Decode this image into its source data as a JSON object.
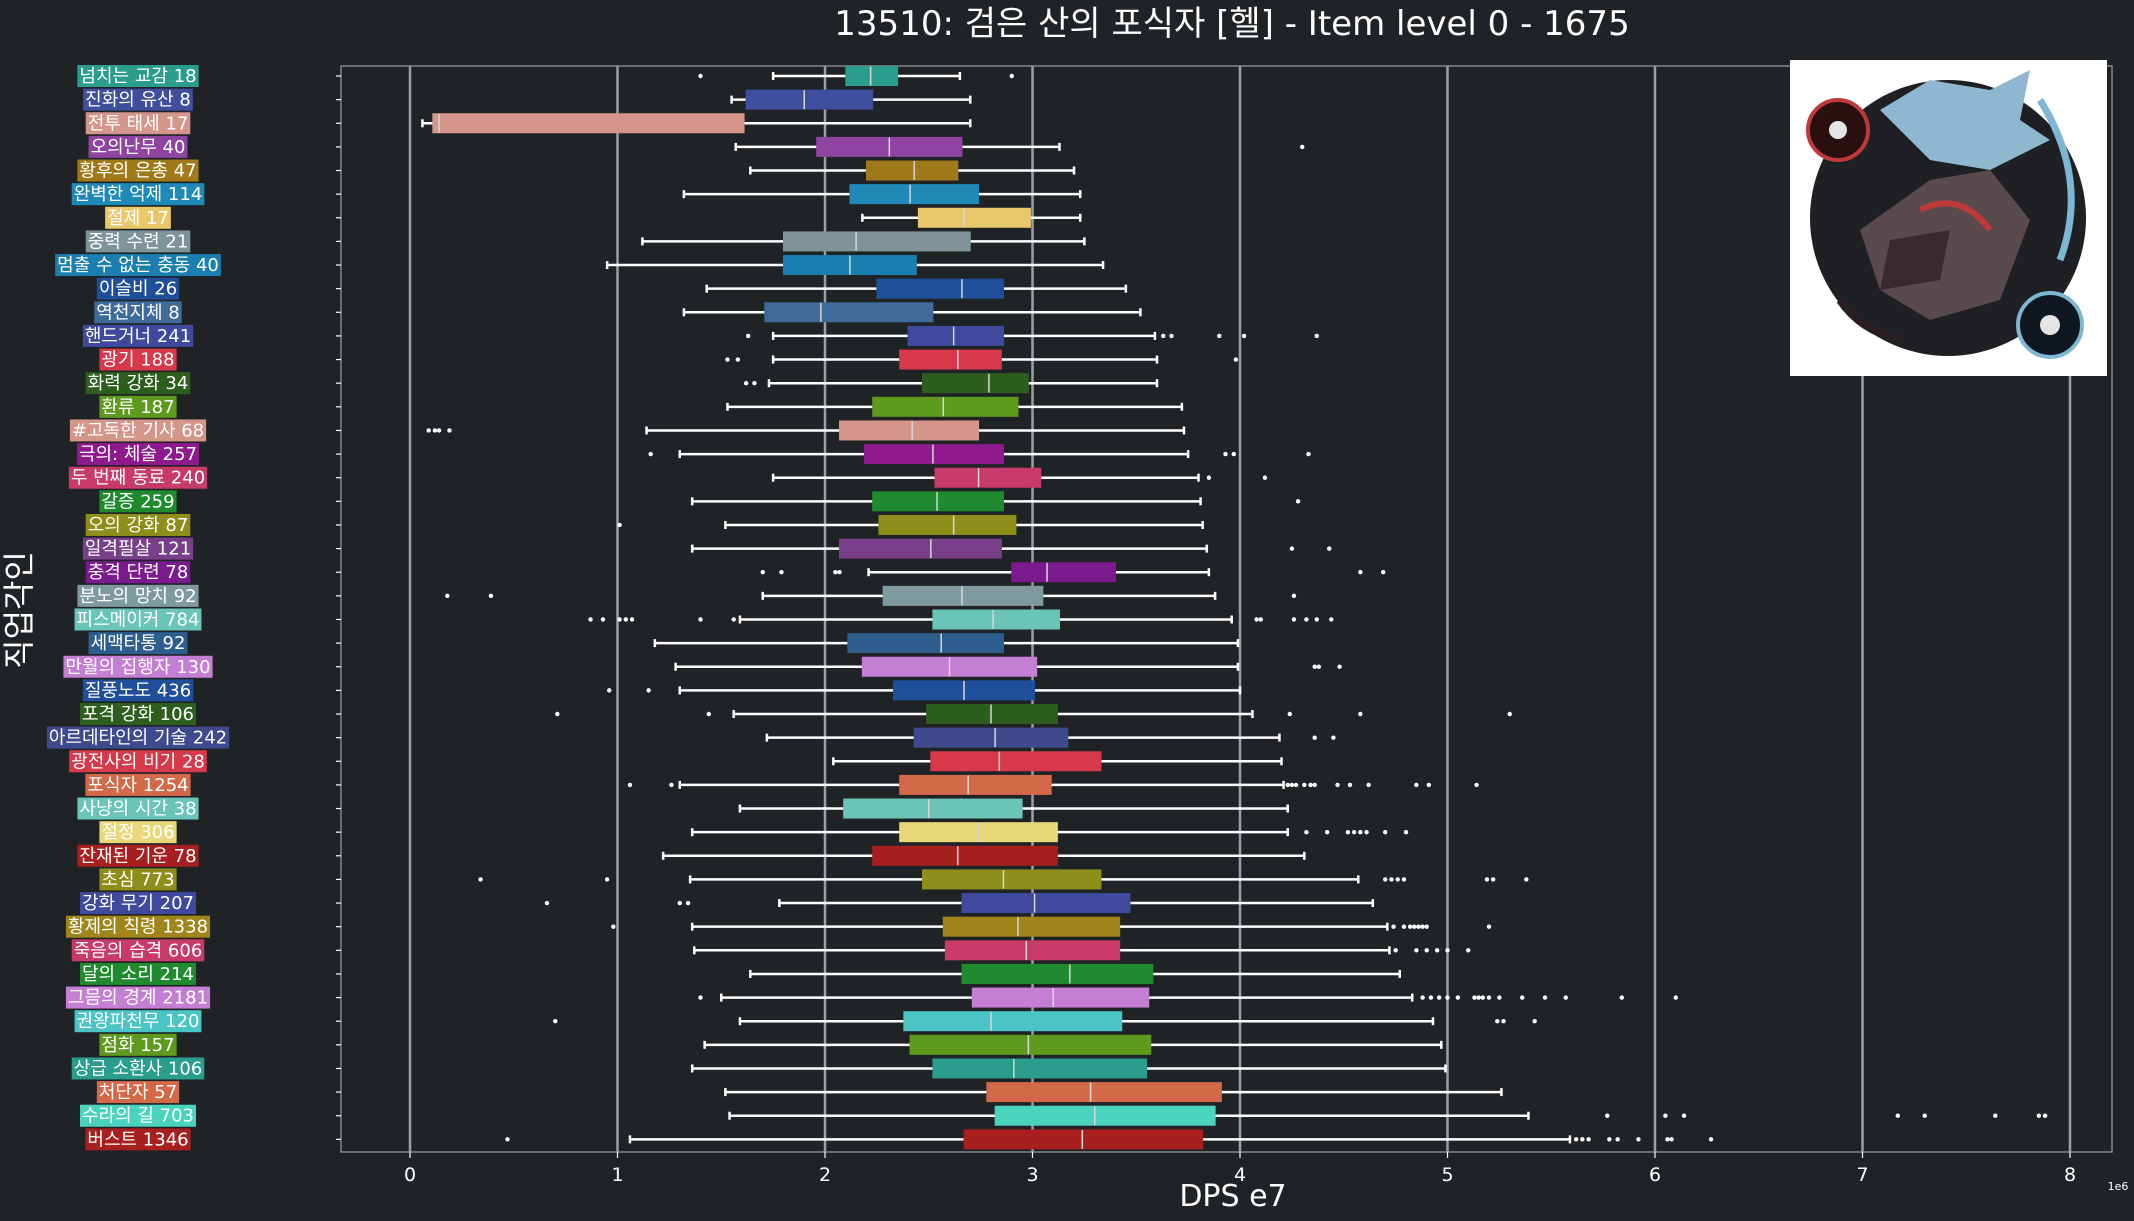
{
  "chart_data": {
    "type": "box",
    "orientation": "horizontal",
    "title": "13510: 검은 산의 포식자 [헬] - Item level 0 - 1675",
    "xlabel": "DPS e7",
    "ylabel": "직업각인",
    "x_offset_label": "1e6",
    "xlim": [
      -0.3,
      8.2
    ],
    "xticks": [
      0,
      1,
      2,
      3,
      4,
      5,
      6,
      7,
      8
    ],
    "grid": "vertical",
    "has_image": true,
    "image_description": "portrait",
    "categories": [
      {
        "label": "넘치는 교감 18",
        "color": "#2a9d8f",
        "whisker_low": 1.75,
        "q1": 2.1,
        "median": 2.22,
        "q3": 2.35,
        "whisker_high": 2.65,
        "outliers": [
          1.4,
          2.9
        ]
      },
      {
        "label": "진화의 유산 8",
        "color": "#3f4f9e",
        "whisker_low": 1.55,
        "q1": 1.62,
        "median": 1.9,
        "q3": 2.23,
        "whisker_high": 2.7,
        "outliers": []
      },
      {
        "label": "전투 태세 17",
        "color": "#d4968a",
        "whisker_low": 0.06,
        "q1": 0.11,
        "median": 0.14,
        "q3": 1.61,
        "whisker_high": 2.7,
        "outliers": []
      },
      {
        "label": "오의난무 40",
        "color": "#8e44a0",
        "whisker_low": 1.57,
        "q1": 1.96,
        "median": 2.31,
        "q3": 2.66,
        "whisker_high": 3.13,
        "outliers": [
          4.3
        ]
      },
      {
        "label": "황후의 은총 47",
        "color": "#a07a1a",
        "whisker_low": 1.64,
        "q1": 2.2,
        "median": 2.43,
        "q3": 2.64,
        "whisker_high": 3.2,
        "outliers": []
      },
      {
        "label": "완벽한 억제 114",
        "color": "#1f8ab8",
        "whisker_low": 1.32,
        "q1": 2.12,
        "median": 2.41,
        "q3": 2.74,
        "whisker_high": 3.23,
        "outliers": []
      },
      {
        "label": "절제 17",
        "color": "#e8c86a",
        "whisker_low": 2.18,
        "q1": 2.45,
        "median": 2.67,
        "q3": 2.99,
        "whisker_high": 3.23,
        "outliers": []
      },
      {
        "label": "중력 수련 21",
        "color": "#7f9498",
        "whisker_low": 1.12,
        "q1": 1.8,
        "median": 2.15,
        "q3": 2.7,
        "whisker_high": 3.25,
        "outliers": []
      },
      {
        "label": "멈출 수 없는 충동 40",
        "color": "#1a7fb0",
        "whisker_low": 0.95,
        "q1": 1.8,
        "median": 2.12,
        "q3": 2.44,
        "whisker_high": 3.34,
        "outliers": []
      },
      {
        "label": "이슬비 26",
        "color": "#1f4f9a",
        "whisker_low": 1.43,
        "q1": 2.25,
        "median": 2.66,
        "q3": 2.86,
        "whisker_high": 3.45,
        "outliers": []
      },
      {
        "label": "역천지체 8",
        "color": "#3f6b9a",
        "whisker_low": 1.32,
        "q1": 1.71,
        "median": 1.98,
        "q3": 2.52,
        "whisker_high": 3.52,
        "outliers": []
      },
      {
        "label": "핸드거너 241",
        "color": "#3f4a9e",
        "whisker_low": 1.75,
        "q1": 2.4,
        "median": 2.62,
        "q3": 2.86,
        "whisker_high": 3.59,
        "outliers": [
          1.63,
          3.63,
          3.67,
          3.9,
          4.02,
          4.37
        ]
      },
      {
        "label": "광기 188",
        "color": "#d6394a",
        "whisker_low": 1.75,
        "q1": 2.36,
        "median": 2.64,
        "q3": 2.85,
        "whisker_high": 3.6,
        "outliers": [
          1.53,
          1.58,
          3.98
        ]
      },
      {
        "label": "화력 강화 34",
        "color": "#2e5e1e",
        "whisker_low": 1.73,
        "q1": 2.47,
        "median": 2.79,
        "q3": 2.98,
        "whisker_high": 3.6,
        "outliers": [
          1.62,
          1.66
        ]
      },
      {
        "label": "환류 187",
        "color": "#5e9a1e",
        "whisker_low": 1.53,
        "q1": 2.23,
        "median": 2.57,
        "q3": 2.93,
        "whisker_high": 3.72,
        "outliers": []
      },
      {
        "label": "#고독한 기사 68",
        "color": "#d4968a",
        "whisker_low": 1.14,
        "q1": 2.07,
        "median": 2.42,
        "q3": 2.74,
        "whisker_high": 3.73,
        "outliers": [
          0.09,
          0.12,
          0.14,
          0.19
        ]
      },
      {
        "label": "극의: 체술 257",
        "color": "#8e1a8e",
        "whisker_low": 1.3,
        "q1": 2.19,
        "median": 2.52,
        "q3": 2.86,
        "whisker_high": 3.75,
        "outliers": [
          1.16,
          3.93,
          3.97,
          4.33
        ]
      },
      {
        "label": "두 번째 동료 240",
        "color": "#c83a6a",
        "whisker_low": 1.75,
        "q1": 2.53,
        "median": 2.74,
        "q3": 3.04,
        "whisker_high": 3.8,
        "outliers": [
          3.85,
          4.12
        ]
      },
      {
        "label": "갈증 259",
        "color": "#1f8a2e",
        "whisker_low": 1.36,
        "q1": 2.23,
        "median": 2.54,
        "q3": 2.86,
        "whisker_high": 3.81,
        "outliers": [
          4.28
        ]
      },
      {
        "label": "오의 강화 87",
        "color": "#8e8e1a",
        "whisker_low": 1.52,
        "q1": 2.26,
        "median": 2.62,
        "q3": 2.92,
        "whisker_high": 3.82,
        "outliers": [
          1.01
        ]
      },
      {
        "label": "일격필살 121",
        "color": "#7a3f8a",
        "whisker_low": 1.36,
        "q1": 2.07,
        "median": 2.51,
        "q3": 2.85,
        "whisker_high": 3.84,
        "outliers": [
          4.25,
          4.43
        ]
      },
      {
        "label": "충격 단련 78",
        "color": "#7a1a8e",
        "whisker_low": 2.21,
        "q1": 2.9,
        "median": 3.07,
        "q3": 3.4,
        "whisker_high": 3.85,
        "outliers": [
          1.7,
          1.79,
          2.05,
          2.07,
          4.58,
          4.69
        ]
      },
      {
        "label": "분노의 망치 92",
        "color": "#7f9a9e",
        "whisker_low": 1.7,
        "q1": 2.28,
        "median": 2.66,
        "q3": 3.05,
        "whisker_high": 3.88,
        "outliers": [
          0.18,
          0.39,
          4.26
        ]
      },
      {
        "label": "피스메이커 784",
        "color": "#6ac4b8",
        "whisker_low": 1.59,
        "q1": 2.52,
        "median": 2.81,
        "q3": 3.13,
        "whisker_high": 3.96,
        "outliers": [
          0.87,
          0.93,
          1.01,
          1.04,
          1.07,
          1.4,
          1.56,
          4.08,
          4.1,
          4.26,
          4.32,
          4.37,
          4.44
        ]
      },
      {
        "label": "세맥타통 92",
        "color": "#2e5e8e",
        "whisker_low": 1.18,
        "q1": 2.11,
        "median": 2.56,
        "q3": 2.86,
        "whisker_high": 3.99,
        "outliers": []
      },
      {
        "label": "만월의 집행자 130",
        "color": "#c47fd4",
        "whisker_low": 1.28,
        "q1": 2.18,
        "median": 2.6,
        "q3": 3.02,
        "whisker_high": 3.99,
        "outliers": [
          4.36,
          4.38,
          4.48
        ]
      },
      {
        "label": "질풍노도 436",
        "color": "#1f4f9a",
        "whisker_low": 1.3,
        "q1": 2.33,
        "median": 2.67,
        "q3": 3.01,
        "whisker_high": 4.0,
        "outliers": [
          0.96,
          1.15
        ]
      },
      {
        "label": "포격 강화 106",
        "color": "#2e5e1e",
        "whisker_low": 1.56,
        "q1": 2.49,
        "median": 2.8,
        "q3": 3.12,
        "whisker_high": 4.06,
        "outliers": [
          0.71,
          1.44,
          4.24,
          4.58,
          5.3
        ]
      },
      {
        "label": "아르데타인의 기술 242",
        "color": "#3f4a8e",
        "whisker_low": 1.72,
        "q1": 2.43,
        "median": 2.82,
        "q3": 3.17,
        "whisker_high": 4.19,
        "outliers": [
          4.36,
          4.45
        ]
      },
      {
        "label": "광전사의 비기 28",
        "color": "#d6394a",
        "whisker_low": 2.04,
        "q1": 2.51,
        "median": 2.84,
        "q3": 3.33,
        "whisker_high": 4.2,
        "outliers": []
      },
      {
        "label": "포식자 1254",
        "color": "#d4694a",
        "whisker_low": 1.3,
        "q1": 2.36,
        "median": 2.69,
        "q3": 3.09,
        "whisker_high": 4.21,
        "outliers": [
          1.06,
          1.26,
          4.23,
          4.25,
          4.27,
          4.31,
          4.34,
          4.36,
          4.47,
          4.53,
          4.62,
          4.85,
          4.91,
          5.14
        ]
      },
      {
        "label": "사냥의 시간 38",
        "color": "#6ac4b8",
        "whisker_low": 1.59,
        "q1": 2.09,
        "median": 2.5,
        "q3": 2.95,
        "whisker_high": 4.23,
        "outliers": []
      },
      {
        "label": "절정 306",
        "color": "#e8d87a",
        "whisker_low": 1.36,
        "q1": 2.36,
        "median": 2.74,
        "q3": 3.12,
        "whisker_high": 4.23,
        "outliers": [
          4.32,
          4.42,
          4.52,
          4.55,
          4.58,
          4.61,
          4.7,
          4.8
        ]
      },
      {
        "label": "잔재된 기운 78",
        "color": "#a81f1f",
        "whisker_low": 1.22,
        "q1": 2.23,
        "median": 2.64,
        "q3": 3.12,
        "whisker_high": 4.31,
        "outliers": []
      },
      {
        "label": "초심 773",
        "color": "#8e8e1a",
        "whisker_low": 1.35,
        "q1": 2.47,
        "median": 2.86,
        "q3": 3.33,
        "whisker_high": 4.57,
        "outliers": [
          0.34,
          0.95,
          4.7,
          4.73,
          4.76,
          4.79,
          5.19,
          5.22,
          5.38
        ]
      },
      {
        "label": "강화 무기 207",
        "color": "#3f4a9e",
        "whisker_low": 1.78,
        "q1": 2.66,
        "median": 3.01,
        "q3": 3.47,
        "whisker_high": 4.64,
        "outliers": [
          0.66,
          1.3,
          1.34
        ]
      },
      {
        "label": "황제의 칙령 1338",
        "color": "#a0861a",
        "whisker_low": 1.36,
        "q1": 2.57,
        "median": 2.93,
        "q3": 3.42,
        "whisker_high": 4.71,
        "outliers": [
          0.98,
          4.74,
          4.79,
          4.82,
          4.84,
          4.86,
          4.88,
          4.9,
          5.2
        ]
      },
      {
        "label": "죽음의 습격 606",
        "color": "#c83a6a",
        "whisker_low": 1.37,
        "q1": 2.58,
        "median": 2.97,
        "q3": 3.42,
        "whisker_high": 4.72,
        "outliers": [
          4.75,
          4.85,
          4.9,
          4.95,
          5.0,
          5.1
        ]
      },
      {
        "label": "달의 소리 214",
        "color": "#1f8a2e",
        "whisker_low": 1.64,
        "q1": 2.66,
        "median": 3.18,
        "q3": 3.58,
        "whisker_high": 4.77,
        "outliers": []
      },
      {
        "label": "그믐의 경계 2181",
        "color": "#c47fd4",
        "whisker_low": 1.5,
        "q1": 2.71,
        "median": 3.1,
        "q3": 3.56,
        "whisker_high": 4.83,
        "outliers": [
          1.4,
          4.88,
          4.92,
          4.96,
          5.0,
          5.05,
          5.13,
          5.15,
          5.17,
          5.2,
          5.25,
          5.36,
          5.47,
          5.57,
          5.84,
          6.1
        ]
      },
      {
        "label": "권왕파천무 120",
        "color": "#4ac4c4",
        "whisker_low": 1.59,
        "q1": 2.38,
        "median": 2.8,
        "q3": 3.43,
        "whisker_high": 4.93,
        "outliers": [
          0.7,
          5.24,
          5.27,
          5.42
        ]
      },
      {
        "label": "점화 157",
        "color": "#5e9a1e",
        "whisker_low": 1.42,
        "q1": 2.41,
        "median": 2.98,
        "q3": 3.57,
        "whisker_high": 4.97,
        "outliers": []
      },
      {
        "label": "상급 소환사 106",
        "color": "#2a9d8f",
        "whisker_low": 1.36,
        "q1": 2.52,
        "median": 2.91,
        "q3": 3.55,
        "whisker_high": 4.99,
        "outliers": []
      },
      {
        "label": "처단자 57",
        "color": "#d4694a",
        "whisker_low": 1.52,
        "q1": 2.78,
        "median": 3.28,
        "q3": 3.91,
        "whisker_high": 5.26,
        "outliers": []
      },
      {
        "label": "수라의 길 703",
        "color": "#4ad4c0",
        "whisker_low": 1.54,
        "q1": 2.82,
        "median": 3.3,
        "q3": 3.88,
        "whisker_high": 5.39,
        "outliers": [
          5.77,
          6.05,
          6.14,
          7.17,
          7.3,
          7.64,
          7.85,
          7.88
        ]
      },
      {
        "label": "버스트 1346",
        "color": "#a81f1f",
        "whisker_low": 1.06,
        "q1": 2.67,
        "median": 3.24,
        "q3": 3.82,
        "whisker_high": 5.59,
        "outliers": [
          0.47,
          5.62,
          5.65,
          5.68,
          5.78,
          5.82,
          5.92,
          6.06,
          6.08,
          6.27
        ]
      }
    ]
  }
}
